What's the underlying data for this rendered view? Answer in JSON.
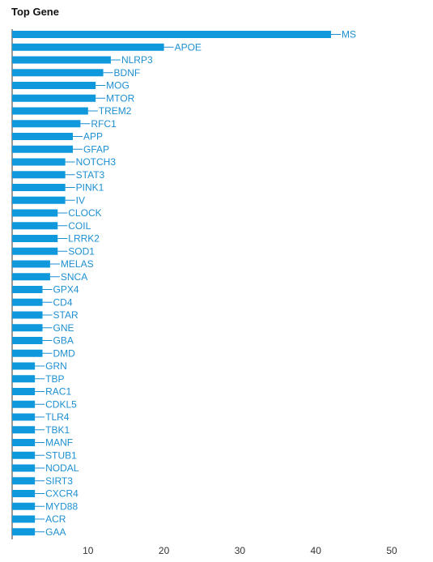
{
  "title": "Top Gene",
  "colors": {
    "bar": "#0f98dc",
    "label": "#1d8fd0",
    "axis": "#333333"
  },
  "chart_data": {
    "type": "bar",
    "orientation": "horizontal",
    "title": "Top Gene",
    "xlabel": "",
    "ylabel": "",
    "xlim": [
      0,
      50
    ],
    "xticks": [
      10,
      20,
      30,
      40,
      50
    ],
    "grid": false,
    "categories": [
      "MS",
      "APOE",
      "NLRP3",
      "BDNF",
      "MOG",
      "MTOR",
      "TREM2",
      "RFC1",
      "APP",
      "GFAP",
      "NOTCH3",
      "STAT3",
      "PINK1",
      "IV",
      "CLOCK",
      "COIL",
      "LRRK2",
      "SOD1",
      "MELAS",
      "SNCA",
      "GPX4",
      "CD4",
      "STAR",
      "GNE",
      "GBA",
      "DMD",
      "GRN",
      "TBP",
      "RAC1",
      "CDKL5",
      "TLR4",
      "TBK1",
      "MANF",
      "STUB1",
      "NODAL",
      "SIRT3",
      "CXCR4",
      "MYD88",
      "ACR",
      "GAA"
    ],
    "values": [
      42,
      20,
      13,
      12,
      11,
      11,
      10,
      9,
      8,
      8,
      7,
      7,
      7,
      7,
      6,
      6,
      6,
      6,
      5,
      5,
      4,
      4,
      4,
      4,
      4,
      4,
      3,
      3,
      3,
      3,
      3,
      3,
      3,
      3,
      3,
      3,
      3,
      3,
      3,
      3
    ]
  }
}
